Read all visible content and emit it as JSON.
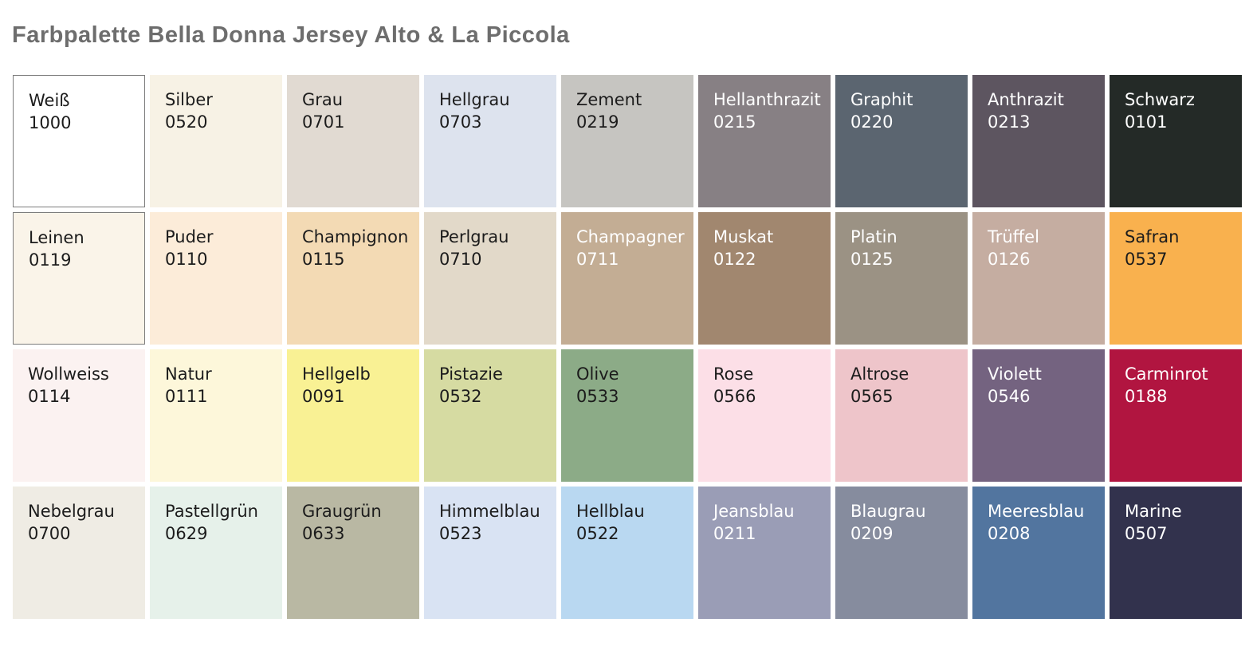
{
  "title": "Farbpalette Bella Donna Jersey Alto & La Piccola",
  "title_color": "#6d6d6d",
  "palette": {
    "columns": 9,
    "rows": 4,
    "gap_color": "#ffffff",
    "bordered_swatch_border_color": "#7c7c7c",
    "swatches": [
      {
        "name": "Weiß",
        "code": "1000",
        "color": "#ffffff",
        "text_color": "#1c1c1c",
        "border": true
      },
      {
        "name": "Silber",
        "code": "0520",
        "color": "#f7f2e5",
        "text_color": "#1c1c1c",
        "border": false
      },
      {
        "name": "Grau",
        "code": "0701",
        "color": "#e1dad2",
        "text_color": "#1c1c1c",
        "border": false
      },
      {
        "name": "Hellgrau",
        "code": "0703",
        "color": "#dde3ee",
        "text_color": "#1c1c1c",
        "border": false
      },
      {
        "name": "Zement",
        "code": "0219",
        "color": "#c6c5c1",
        "text_color": "#1c1c1c",
        "border": false
      },
      {
        "name": "Hellanthrazit",
        "code": "0215",
        "color": "#878084",
        "text_color": "#ffffff",
        "border": false
      },
      {
        "name": "Graphit",
        "code": "0220",
        "color": "#5b6570",
        "text_color": "#ffffff",
        "border": false
      },
      {
        "name": "Anthrazit",
        "code": "0213",
        "color": "#5d5560",
        "text_color": "#ffffff",
        "border": false
      },
      {
        "name": "Schwarz",
        "code": "0101",
        "color": "#242a27",
        "text_color": "#ffffff",
        "border": false
      },
      {
        "name": "Leinen",
        "code": "0119",
        "color": "#faf4e9",
        "text_color": "#1c1c1c",
        "border": true
      },
      {
        "name": "Puder",
        "code": "0110",
        "color": "#fcecd9",
        "text_color": "#1c1c1c",
        "border": false
      },
      {
        "name": "Champignon",
        "code": "0115",
        "color": "#f3dab4",
        "text_color": "#1c1c1c",
        "border": false
      },
      {
        "name": "Perlgrau",
        "code": "0710",
        "color": "#e2d9c9",
        "text_color": "#1c1c1c",
        "border": false
      },
      {
        "name": "Champagner",
        "code": "0711",
        "color": "#c3ad94",
        "text_color": "#ffffff",
        "border": false
      },
      {
        "name": "Muskat",
        "code": "0122",
        "color": "#a1876f",
        "text_color": "#ffffff",
        "border": false
      },
      {
        "name": "Platin",
        "code": "0125",
        "color": "#9b9284",
        "text_color": "#ffffff",
        "border": false
      },
      {
        "name": "Trüffel",
        "code": "0126",
        "color": "#c5ada1",
        "text_color": "#ffffff",
        "border": false
      },
      {
        "name": "Safran",
        "code": "0537",
        "color": "#f9b14e",
        "text_color": "#1c1c1c",
        "border": false
      },
      {
        "name": "Wollweiss",
        "code": "0114",
        "color": "#fbf2f1",
        "text_color": "#1c1c1c",
        "border": false
      },
      {
        "name": "Natur",
        "code": "0111",
        "color": "#fdf7da",
        "text_color": "#1c1c1c",
        "border": false
      },
      {
        "name": "Hellgelb",
        "code": "0091",
        "color": "#f9f194",
        "text_color": "#1c1c1c",
        "border": false
      },
      {
        "name": "Pistazie",
        "code": "0532",
        "color": "#d6dba2",
        "text_color": "#1c1c1c",
        "border": false
      },
      {
        "name": "Olive",
        "code": "0533",
        "color": "#8cab87",
        "text_color": "#1c1c1c",
        "border": false
      },
      {
        "name": "Rose",
        "code": "0566",
        "color": "#fcdfe7",
        "text_color": "#1c1c1c",
        "border": false
      },
      {
        "name": "Altrose",
        "code": "0565",
        "color": "#eec5ca",
        "text_color": "#1c1c1c",
        "border": false
      },
      {
        "name": "Violett",
        "code": "0546",
        "color": "#746380",
        "text_color": "#ffffff",
        "border": false
      },
      {
        "name": "Carminrot",
        "code": "0188",
        "color": "#b11540",
        "text_color": "#ffffff",
        "border": false
      },
      {
        "name": "Nebelgrau",
        "code": "0700",
        "color": "#efece4",
        "text_color": "#1c1c1c",
        "border": false
      },
      {
        "name": "Pastellgrün",
        "code": "0629",
        "color": "#e6f1ea",
        "text_color": "#1c1c1c",
        "border": false
      },
      {
        "name": "Graugrün",
        "code": "0633",
        "color": "#b9b8a3",
        "text_color": "#1c1c1c",
        "border": false
      },
      {
        "name": "Himmelblau",
        "code": "0523",
        "color": "#d9e3f3",
        "text_color": "#1c1c1c",
        "border": false
      },
      {
        "name": "Hellblau",
        "code": "0522",
        "color": "#b9d8f1",
        "text_color": "#1c1c1c",
        "border": false
      },
      {
        "name": "Jeansblau",
        "code": "0211",
        "color": "#9a9db6",
        "text_color": "#ffffff",
        "border": false
      },
      {
        "name": "Blaugrau",
        "code": "0209",
        "color": "#868c9e",
        "text_color": "#ffffff",
        "border": false
      },
      {
        "name": "Meeresblau",
        "code": "0208",
        "color": "#52759f",
        "text_color": "#ffffff",
        "border": false
      },
      {
        "name": "Marine",
        "code": "0507",
        "color": "#32324d",
        "text_color": "#ffffff",
        "border": false
      }
    ]
  }
}
